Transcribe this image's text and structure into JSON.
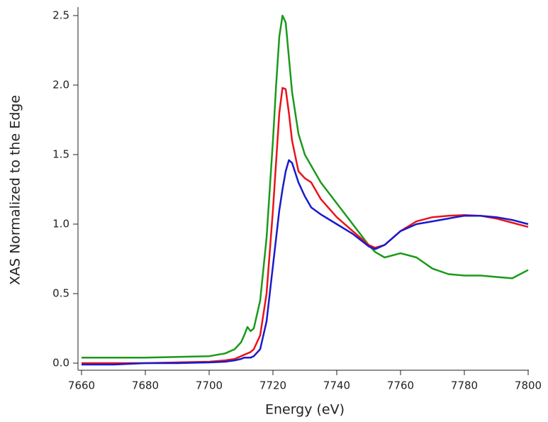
{
  "chart_data": {
    "type": "line",
    "xlabel": "Energy (eV)",
    "ylabel": "XAS Normalized to the Edge",
    "x": [
      7660,
      7670,
      7680,
      7690,
      7700,
      7705,
      7708,
      7710,
      7711,
      7712,
      7713,
      7714,
      7716,
      7718,
      7720,
      7721,
      7722,
      7723,
      7724,
      7725,
      7726,
      7728,
      7730,
      7732,
      7735,
      7740,
      7745,
      7750,
      7752,
      7755,
      7760,
      7765,
      7770,
      7775,
      7780,
      7785,
      7790,
      7795,
      7800
    ],
    "series": [
      {
        "color": "#1a9a1a",
        "values": [
          0.04,
          0.04,
          0.04,
          0.045,
          0.05,
          0.07,
          0.1,
          0.15,
          0.2,
          0.26,
          0.23,
          0.25,
          0.45,
          0.9,
          1.6,
          2.0,
          2.35,
          2.5,
          2.45,
          2.2,
          1.95,
          1.65,
          1.5,
          1.42,
          1.3,
          1.15,
          1.0,
          0.85,
          0.8,
          0.76,
          0.79,
          0.76,
          0.68,
          0.64,
          0.63,
          0.63,
          0.62,
          0.61,
          0.67
        ]
      },
      {
        "color": "#e8141a",
        "values": [
          0,
          0,
          0,
          0.005,
          0.01,
          0.02,
          0.03,
          0.05,
          0.06,
          0.07,
          0.08,
          0.1,
          0.2,
          0.5,
          1.1,
          1.45,
          1.8,
          1.98,
          1.97,
          1.8,
          1.6,
          1.38,
          1.33,
          1.3,
          1.18,
          1.05,
          0.95,
          0.85,
          0.83,
          0.85,
          0.95,
          1.02,
          1.05,
          1.06,
          1.065,
          1.06,
          1.04,
          1.01,
          0.98
        ]
      },
      {
        "color": "#1a1acc",
        "values": [
          -0.01,
          -0.01,
          0,
          0,
          0.005,
          0.01,
          0.02,
          0.03,
          0.04,
          0.04,
          0.04,
          0.05,
          0.1,
          0.3,
          0.7,
          0.9,
          1.1,
          1.25,
          1.38,
          1.46,
          1.44,
          1.3,
          1.2,
          1.12,
          1.07,
          1.0,
          0.93,
          0.84,
          0.82,
          0.85,
          0.95,
          1.0,
          1.02,
          1.04,
          1.06,
          1.06,
          1.05,
          1.03,
          1.0
        ]
      }
    ],
    "xlim": [
      7660,
      7800
    ],
    "xticks": [
      7660,
      7680,
      7700,
      7720,
      7740,
      7760,
      7780,
      7800
    ],
    "ylim": [
      -0.05,
      2.56
    ],
    "yticks": [
      {
        "value": 0,
        "label": "0.0"
      },
      {
        "value": 0.5,
        "label": "0.5"
      },
      {
        "value": 1,
        "label": "1.0"
      },
      {
        "value": 1.5,
        "label": "1.5"
      },
      {
        "value": 2,
        "label": "2.0"
      },
      {
        "value": 2.5,
        "label": "2.5"
      }
    ]
  }
}
